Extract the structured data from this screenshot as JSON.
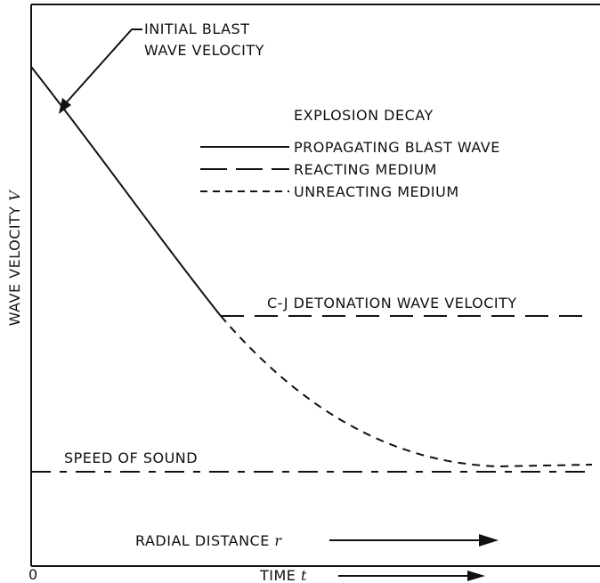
{
  "y_axis": {
    "label": "WAVE VELOCITY",
    "symbol": "V"
  },
  "x_axis": {
    "origin": "0",
    "radial": {
      "label": "RADIAL DISTANCE",
      "symbol": "r"
    },
    "time": {
      "label": "TIME",
      "symbol": "t"
    }
  },
  "annotations": {
    "initial": [
      "INITIAL BLAST",
      "WAVE VELOCITY"
    ],
    "cj": "C-J DETONATION WAVE VELOCITY",
    "sound": "SPEED OF SOUND"
  },
  "legend": {
    "title": "EXPLOSION DECAY",
    "items": [
      "PROPAGATING BLAST WAVE",
      "REACTING MEDIUM",
      "UNREACTING MEDIUM"
    ]
  }
}
